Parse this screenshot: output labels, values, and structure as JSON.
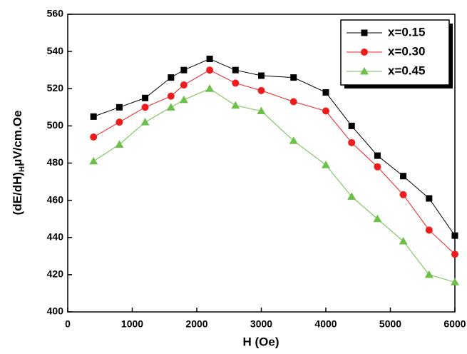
{
  "chart_data": {
    "type": "line",
    "x_label": "H (Oe)",
    "y_label": "(dE/dH)",
    "y_label_subscript": "H",
    "y_label_unit": "μV/cm.Oe",
    "x": [
      400,
      800,
      1200,
      1600,
      1800,
      2200,
      2600,
      3000,
      3500,
      4000,
      4400,
      4800,
      5200,
      5600,
      6000
    ],
    "series": [
      {
        "name": "x=0.15",
        "color": "#000000",
        "marker": "square",
        "values": [
          505,
          510,
          515,
          526,
          530,
          536,
          530,
          527,
          526,
          518,
          500,
          484,
          473,
          461,
          441
        ]
      },
      {
        "name": "x=0.30",
        "color": "#ee1c1c",
        "marker": "circle",
        "values": [
          494,
          502,
          510,
          516,
          522,
          530,
          523,
          519,
          513,
          508,
          491,
          478,
          463,
          444,
          431
        ]
      },
      {
        "name": "x=0.45",
        "color": "#6cc04a",
        "marker": "triangle",
        "values": [
          481,
          490,
          502,
          510,
          514,
          520,
          511,
          508,
          492,
          479,
          462,
          450,
          438,
          420,
          416
        ]
      }
    ],
    "xlim": [
      0,
      6000
    ],
    "xticks": [
      0,
      1000,
      2000,
      3000,
      4000,
      5000,
      6000
    ],
    "ylim": [
      400,
      560
    ],
    "yticks": [
      400,
      420,
      440,
      460,
      480,
      500,
      520,
      540,
      560
    ],
    "grid": false,
    "legend": "upper right"
  }
}
